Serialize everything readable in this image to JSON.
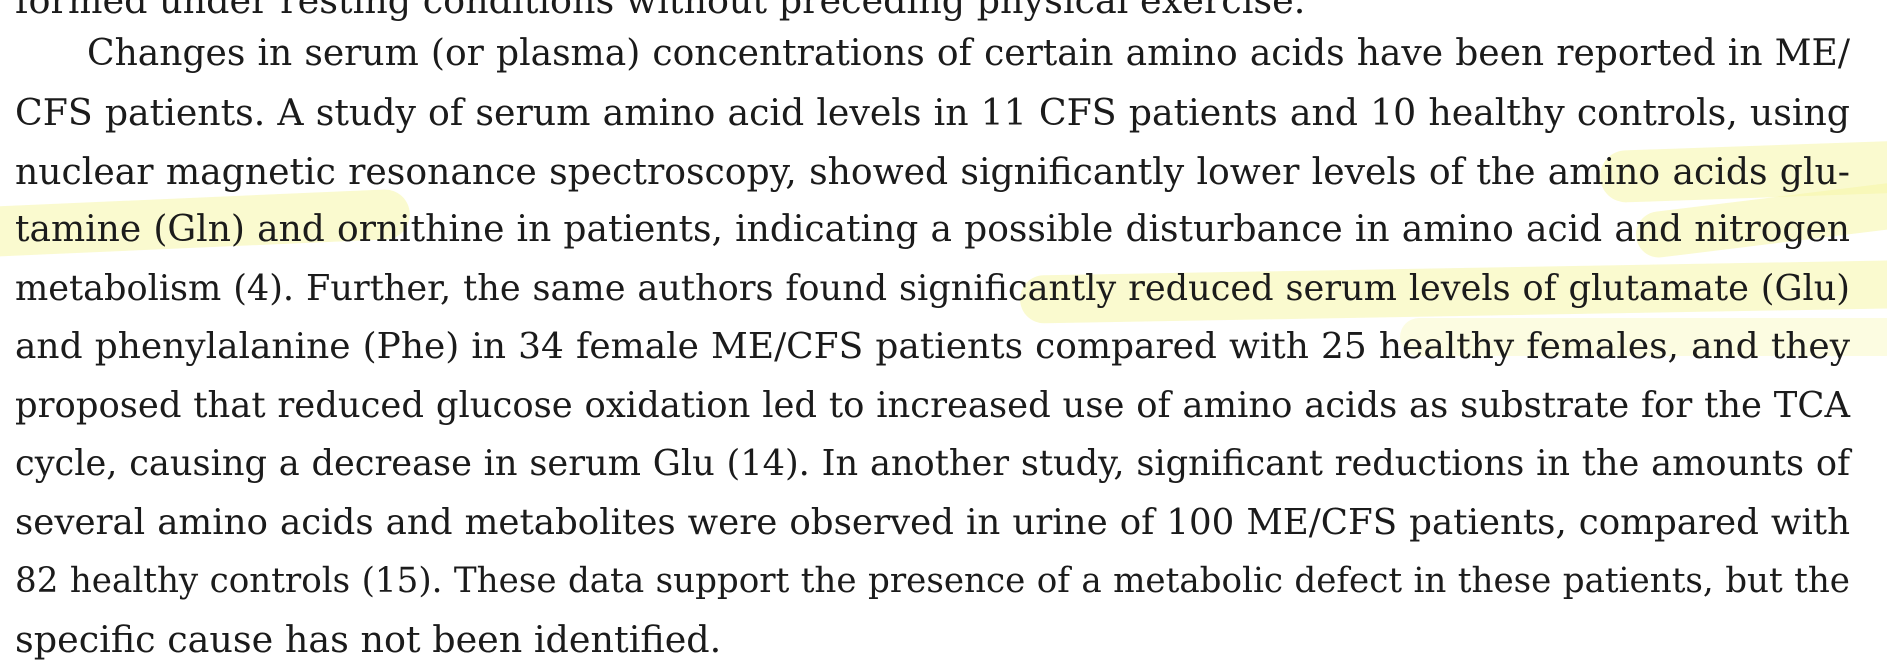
{
  "paragraph": {
    "lines": [
      "formed under resting conditions without preceding physical exercise.",
      "Changes in serum (or plasma) concentrations of certain amino acids have been reported in ME/",
      "CFS patients. A study of serum amino acid levels in 11 CFS patients and 10 healthy controls, using",
      "nuclear magnetic resonance spectroscopy, showed significantly lower levels of the amino acids glu-",
      "tamine (Gln) and ornithine in patients, indicating a possible disturbance in amino acid and nitrogen",
      "metabolism (4). Further, the same authors found significantly reduced serum levels of glutamate (Glu)",
      "and phenylalanine (Phe) in 34 female ME/CFS patients compared with 25 healthy females, and they",
      "proposed that reduced glucose oxidation led to increased use of amino acids as substrate for the TCA",
      "cycle, causing a decrease in serum Glu (14). In another study, significant reductions in the amounts of",
      "several amino acids and metabolites were observed in urine of 100 ME/CFS patients, compared with",
      "82 healthy controls (15). These data support the presence of a metabolic defect in these patients, but the",
      "specific cause has not been identified."
    ]
  },
  "colors": {
    "text": "#1b1b1b",
    "highlight": "#f6f6a8",
    "background": "#ffffff"
  }
}
